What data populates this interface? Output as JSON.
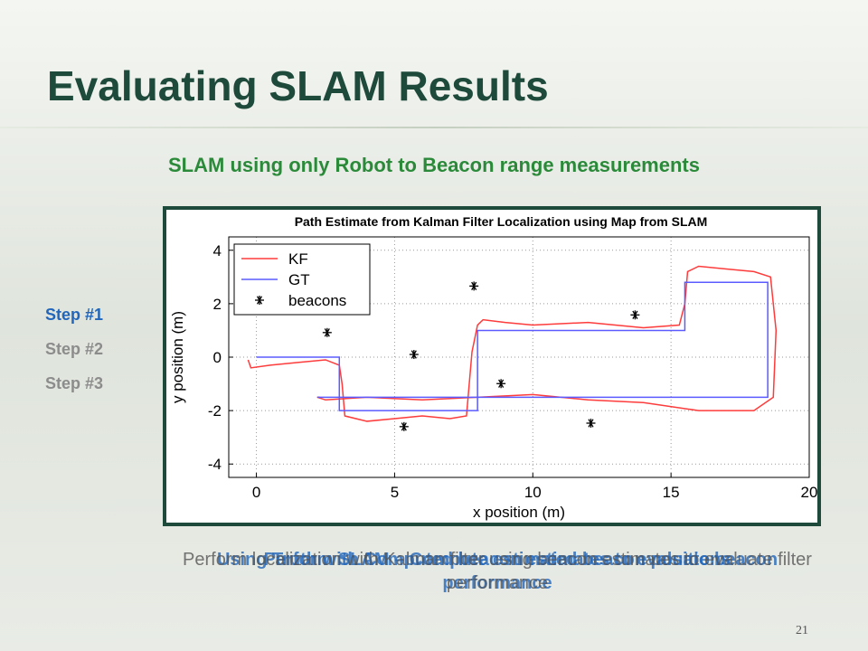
{
  "slide": {
    "title": "Evaluating SLAM Results",
    "subtitle": "SLAM using only Robot to Beacon range measurements",
    "steps": [
      {
        "label": "Step #1",
        "active": true
      },
      {
        "label": "Step #2",
        "active": false
      },
      {
        "label": "Step #3",
        "active": false
      }
    ],
    "captions": [
      {
        "text": "Perform SLAM – Compute estimated beacon positions",
        "style": "bold"
      },
      {
        "text": "Using Truth with Computed beacon estimates to evaluate beacon performance",
        "style": "bold"
      },
      {
        "text": "Perform localization with Kalman filter using beacon estimates to evaluate filter performance",
        "style": "normal"
      }
    ],
    "page_number": "21"
  },
  "chart_data": {
    "type": "line",
    "title": "Path Estimate from Kalman Filter Localization using Map from SLAM",
    "xlabel": "x position (m)",
    "ylabel": "y position (m)",
    "xlim": [
      -1,
      20
    ],
    "ylim": [
      -4.5,
      4.5
    ],
    "xticks": [
      0,
      5,
      10,
      15,
      20
    ],
    "yticks": [
      -4,
      -2,
      0,
      2,
      4
    ],
    "grid": true,
    "legend": "top-left",
    "series": [
      {
        "name": "KF",
        "color": "#ff3b3b",
        "x": [
          -0.3,
          -0.2,
          0.5,
          1.5,
          2.5,
          3.0,
          3.1,
          3.2,
          4,
          5,
          6,
          7,
          7.6,
          7.7,
          7.8,
          8,
          8.2,
          9,
          10,
          12,
          14,
          15.3,
          15.5,
          15.6,
          16,
          17,
          18,
          18.6,
          18.8,
          18.7,
          18,
          16,
          14,
          12,
          10,
          8,
          6,
          4,
          2.5,
          2.2,
          2.3
        ],
        "values": [
          -0.1,
          -0.4,
          -0.3,
          -0.2,
          -0.1,
          -0.3,
          -1,
          -2.2,
          -2.4,
          -2.3,
          -2.2,
          -2.3,
          -2.2,
          -1,
          0.2,
          1.2,
          1.4,
          1.3,
          1.2,
          1.3,
          1.1,
          1.2,
          2,
          3.2,
          3.4,
          3.3,
          3.2,
          3.0,
          1,
          -1.5,
          -2,
          -2,
          -1.7,
          -1.6,
          -1.4,
          -1.5,
          -1.6,
          -1.5,
          -1.6,
          -1.5,
          -1.5
        ]
      },
      {
        "name": "GT",
        "color": "#5b5bff",
        "x": [
          0,
          3,
          3,
          8,
          8,
          15.5,
          15.5,
          18.5,
          18.5,
          2.2
        ],
        "values": [
          0,
          0,
          -2,
          -2,
          1,
          1,
          2.8,
          2.8,
          -1.5,
          -1.5
        ]
      },
      {
        "name": "beacons",
        "color": "#000000",
        "marker": "asterisk",
        "x": [
          2.56,
          5.7,
          7.87,
          13.7,
          8.85,
          5.34,
          12.1
        ],
        "values": [
          0.92,
          0.1,
          2.66,
          1.58,
          -0.99,
          -2.6,
          -2.47
        ]
      }
    ]
  }
}
